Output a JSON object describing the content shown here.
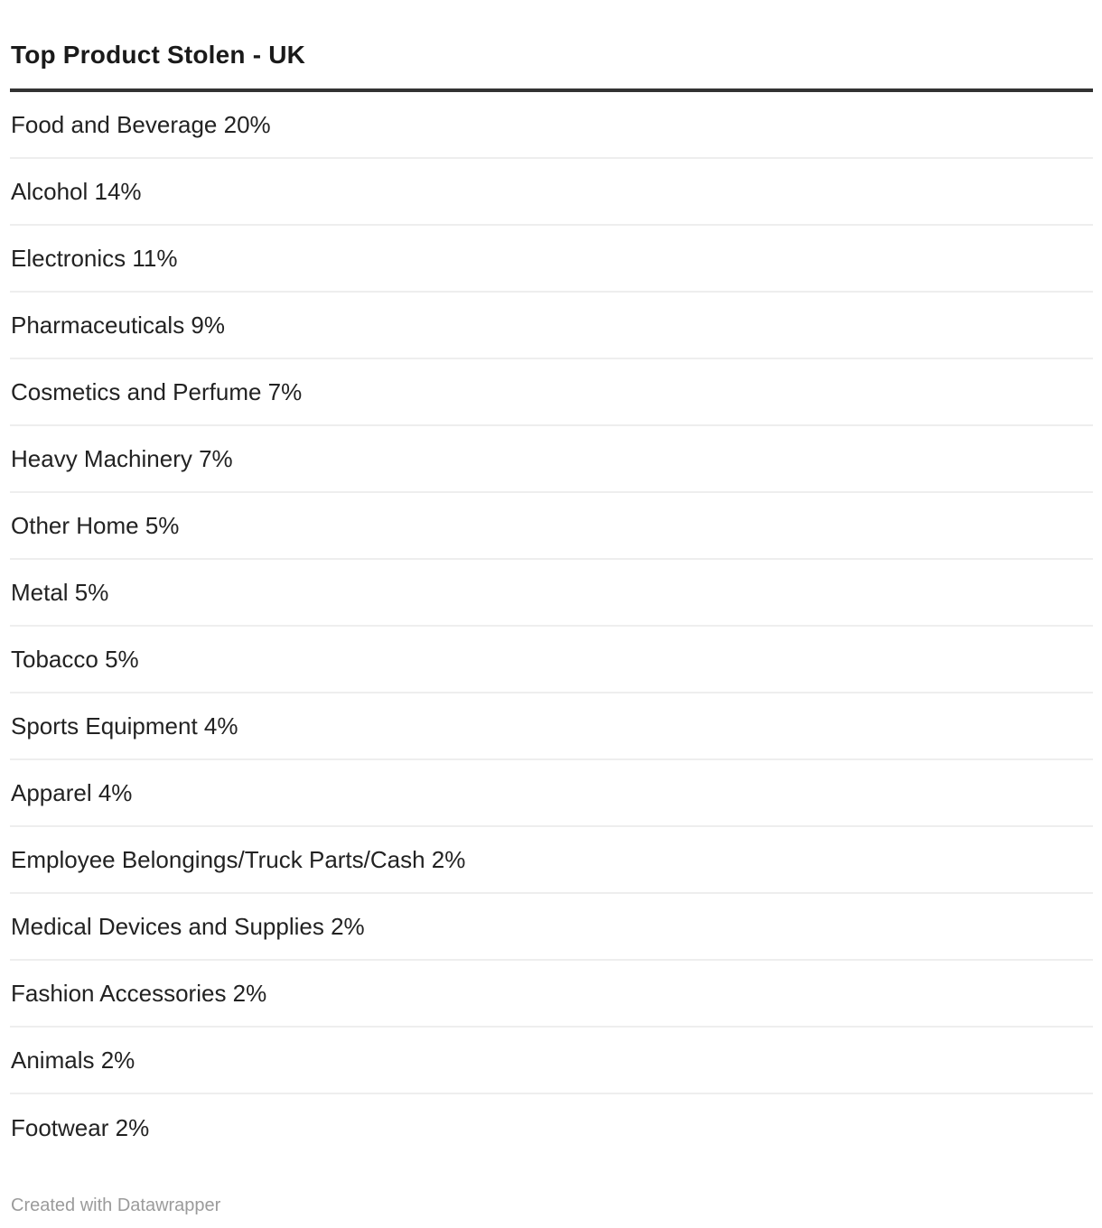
{
  "title": "Top Product Stolen - UK",
  "footer": {
    "attribution": "Created with Datawrapper"
  },
  "colors": {
    "background": "#ffffff",
    "title_text": "#1a1a1a",
    "row_text": "#222222",
    "header_rule": "#333333",
    "row_separator": "#eeeeee",
    "attribution_text": "#9b9b9b"
  },
  "chart_data": {
    "type": "table",
    "title": "Top Product Stolen - UK",
    "unit": "%",
    "categories": [
      "Food and Beverage",
      "Alcohol",
      "Electronics",
      "Pharmaceuticals",
      "Cosmetics and Perfume",
      "Heavy Machinery",
      "Other Home",
      "Metal",
      "Tobacco",
      "Sports Equipment",
      "Apparel",
      "Employee Belongings/Truck Parts/Cash",
      "Medical Devices and Supplies",
      "Fashion Accessories",
      "Animals",
      "Footwear"
    ],
    "values": [
      20,
      14,
      11,
      9,
      7,
      7,
      5,
      5,
      5,
      4,
      4,
      2,
      2,
      2,
      2,
      2
    ],
    "layout": {
      "header_rule": true,
      "row_separators": true,
      "value_position": "inline-after-label"
    }
  }
}
